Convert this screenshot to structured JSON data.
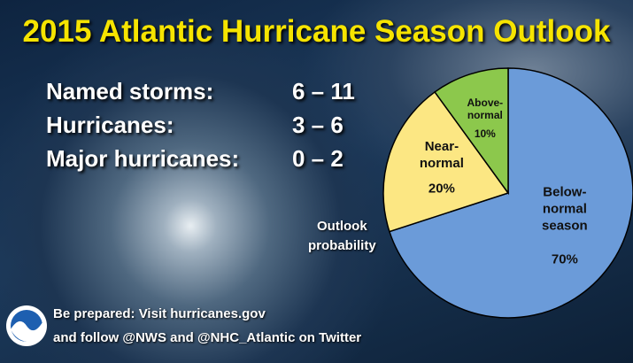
{
  "title": "2015 Atlantic Hurricane Season Outlook",
  "stats": [
    {
      "label": "Named storms:",
      "range": "6 – 11"
    },
    {
      "label": "Hurricanes:",
      "range": "3 – 6"
    },
    {
      "label": "Major hurricanes:",
      "range": "0 – 2"
    }
  ],
  "chart_data": {
    "type": "pie",
    "annotation": "Outlook\nprobability",
    "categories": [
      "Below-\nnormal\nseason",
      "Near-\nnormal",
      "Above-\nnormal"
    ],
    "values": [
      70,
      20,
      10
    ],
    "value_labels": [
      "70%",
      "20%",
      "10%"
    ],
    "colors": [
      "#6b9bd9",
      "#fce783",
      "#8cc84c"
    ]
  },
  "footer": [
    "Be prepared: Visit hurricanes.gov",
    "and follow @NWS and @NHC_Atlantic on Twitter"
  ]
}
